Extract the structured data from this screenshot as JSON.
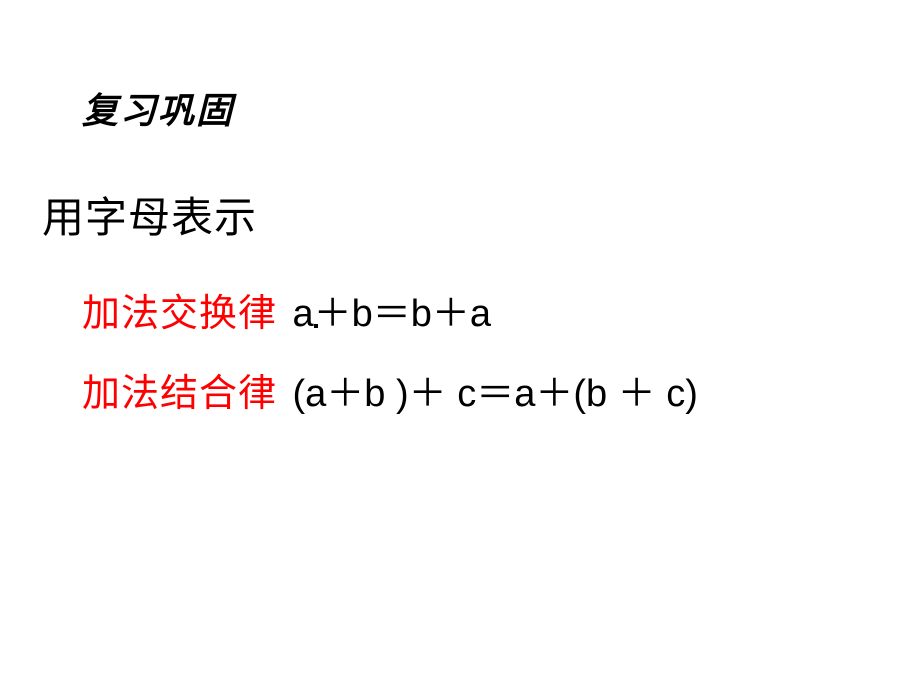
{
  "header": {
    "text": "复习巩固",
    "color": "#000000",
    "fontsize": 36,
    "font_style": "italic bold"
  },
  "section_title": {
    "text": "用字母表示",
    "color": "#000000",
    "fontsize": 42
  },
  "rule1": {
    "label": "加法交换律",
    "label_color": "#ff0000",
    "formula": "a＋b＝b＋a",
    "formula_color": "#000000",
    "fontsize": 38
  },
  "rule2": {
    "label": "加法结合律",
    "label_color": "#ff0000",
    "formula": "(a＋b )＋ c＝a＋(b ＋ c)",
    "formula_color": "#000000",
    "fontsize": 38
  },
  "background_color": "#ffffff"
}
